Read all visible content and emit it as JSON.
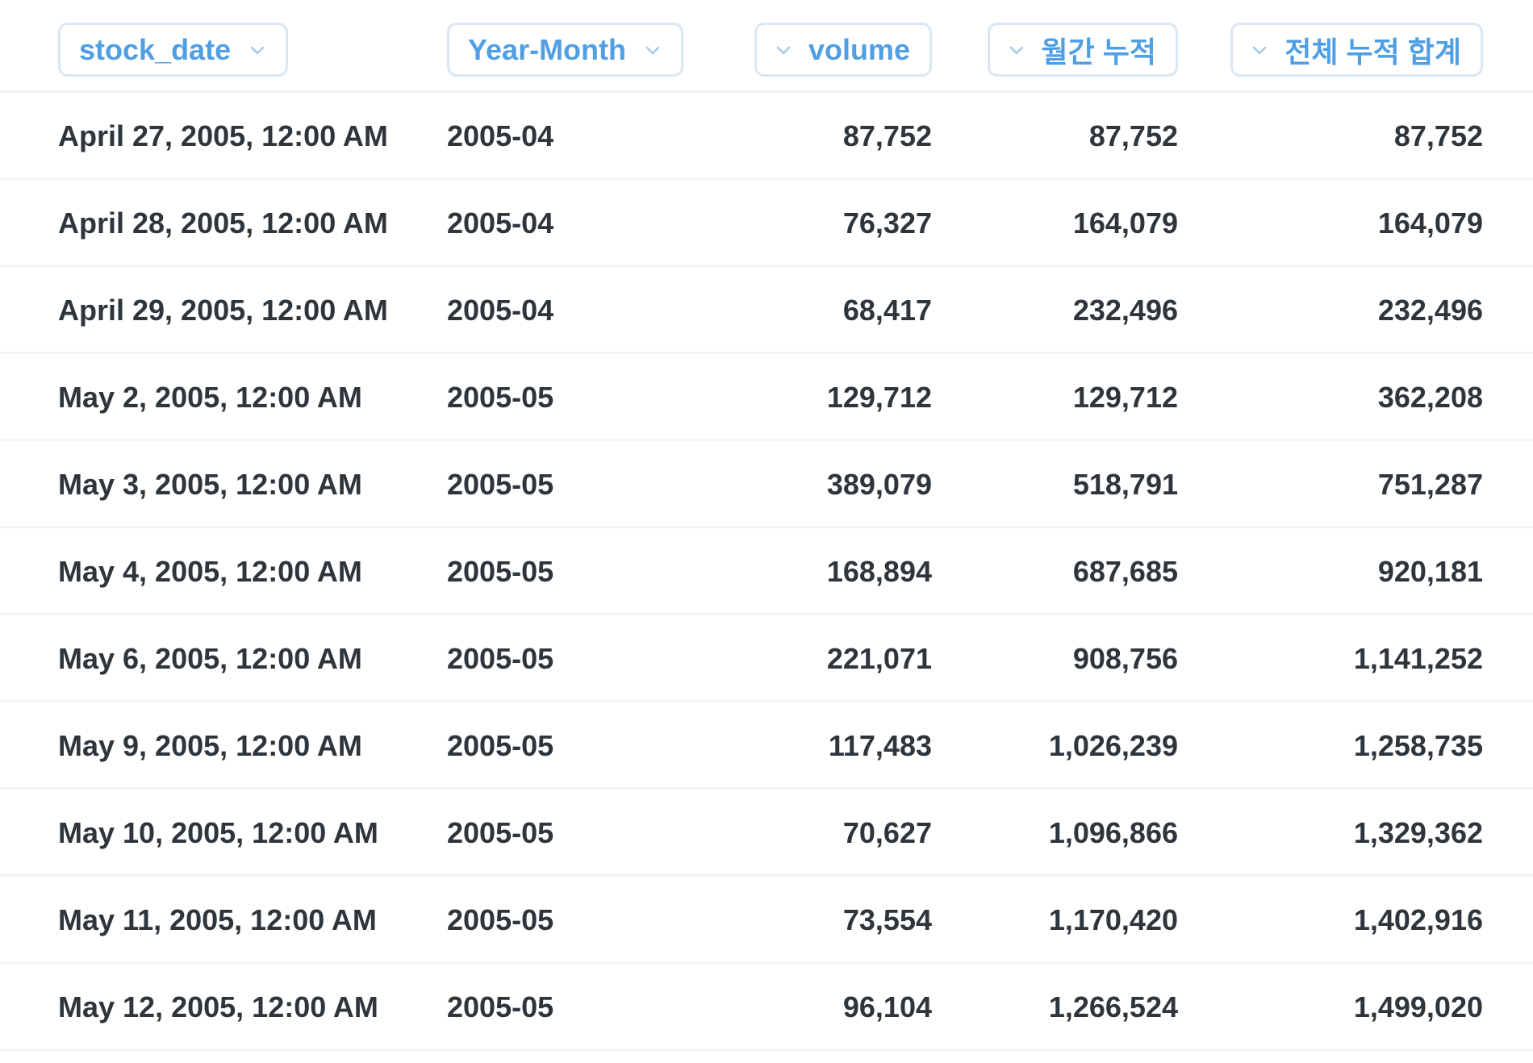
{
  "columns": [
    {
      "key": "stock_date",
      "label": "stock_date",
      "align": "left"
    },
    {
      "key": "year_month",
      "label": "Year-Month",
      "align": "left"
    },
    {
      "key": "volume",
      "label": "volume",
      "align": "right"
    },
    {
      "key": "monthly_cumulative",
      "label": "월간 누적",
      "align": "right"
    },
    {
      "key": "total_cumulative",
      "label": "전체 누적 합계",
      "align": "right"
    }
  ],
  "rows": [
    {
      "stock_date": "April 27, 2005, 12:00 AM",
      "year_month": "2005-04",
      "volume": "87,752",
      "monthly_cumulative": "87,752",
      "total_cumulative": "87,752"
    },
    {
      "stock_date": "April 28, 2005, 12:00 AM",
      "year_month": "2005-04",
      "volume": "76,327",
      "monthly_cumulative": "164,079",
      "total_cumulative": "164,079"
    },
    {
      "stock_date": "April 29, 2005, 12:00 AM",
      "year_month": "2005-04",
      "volume": "68,417",
      "monthly_cumulative": "232,496",
      "total_cumulative": "232,496"
    },
    {
      "stock_date": "May 2, 2005, 12:00 AM",
      "year_month": "2005-05",
      "volume": "129,712",
      "monthly_cumulative": "129,712",
      "total_cumulative": "362,208"
    },
    {
      "stock_date": "May 3, 2005, 12:00 AM",
      "year_month": "2005-05",
      "volume": "389,079",
      "monthly_cumulative": "518,791",
      "total_cumulative": "751,287"
    },
    {
      "stock_date": "May 4, 2005, 12:00 AM",
      "year_month": "2005-05",
      "volume": "168,894",
      "monthly_cumulative": "687,685",
      "total_cumulative": "920,181"
    },
    {
      "stock_date": "May 6, 2005, 12:00 AM",
      "year_month": "2005-05",
      "volume": "221,071",
      "monthly_cumulative": "908,756",
      "total_cumulative": "1,141,252"
    },
    {
      "stock_date": "May 9, 2005, 12:00 AM",
      "year_month": "2005-05",
      "volume": "117,483",
      "monthly_cumulative": "1,026,239",
      "total_cumulative": "1,258,735"
    },
    {
      "stock_date": "May 10, 2005, 12:00 AM",
      "year_month": "2005-05",
      "volume": "70,627",
      "monthly_cumulative": "1,096,866",
      "total_cumulative": "1,329,362"
    },
    {
      "stock_date": "May 11, 2005, 12:00 AM",
      "year_month": "2005-05",
      "volume": "73,554",
      "monthly_cumulative": "1,170,420",
      "total_cumulative": "1,402,916"
    },
    {
      "stock_date": "May 12, 2005, 12:00 AM",
      "year_month": "2005-05",
      "volume": "96,104",
      "monthly_cumulative": "1,266,524",
      "total_cumulative": "1,499,020"
    }
  ],
  "colors": {
    "accent": "#509ee3",
    "pill_border": "#dbe6f3",
    "text": "#2e353b",
    "divider": "#f2f4f7"
  },
  "icons": {
    "sort": "chevron-down-icon"
  }
}
